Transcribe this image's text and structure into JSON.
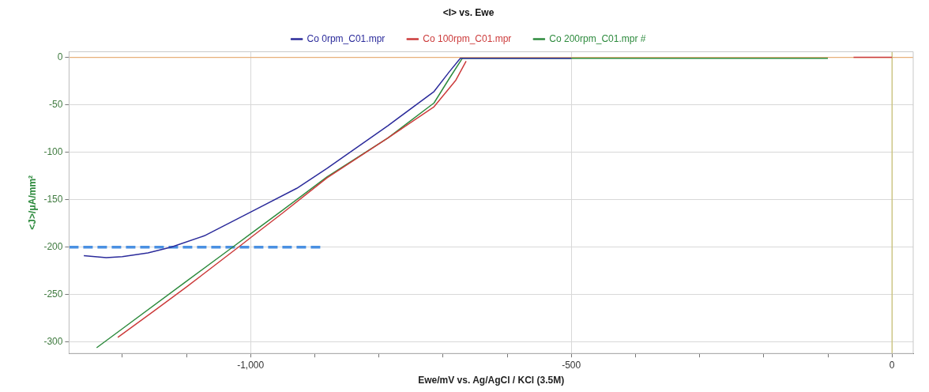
{
  "chart_data": {
    "type": "line",
    "title": "<I> vs. Ewe",
    "xlabel": "Ewe/mV vs. Ag/AgCl / KCl (3.5M)",
    "ylabel": "<J>/μA/mm²",
    "xlim": [
      -1283,
      33
    ],
    "ylim": [
      -312,
      6
    ],
    "xticks": [
      {
        "value": -1200,
        "label": null
      },
      {
        "value": -1100,
        "label": null
      },
      {
        "value": -1000,
        "label": "-1,000"
      },
      {
        "value": -900,
        "label": null
      },
      {
        "value": -800,
        "label": null
      },
      {
        "value": -700,
        "label": null
      },
      {
        "value": -600,
        "label": null
      },
      {
        "value": -500,
        "label": "-500"
      },
      {
        "value": -400,
        "label": null
      },
      {
        "value": -300,
        "label": null
      },
      {
        "value": -200,
        "label": null
      },
      {
        "value": -100,
        "label": null
      },
      {
        "value": 0,
        "label": "0"
      }
    ],
    "yticks": [
      -300,
      -250,
      -200,
      -150,
      -100,
      -50,
      0
    ],
    "grid": true,
    "legend": "top",
    "marker": "none",
    "ref_lines": [
      {
        "axis": "y",
        "value": 0,
        "color": "#e8b07a"
      },
      {
        "axis": "x",
        "value": 0,
        "color": "#c8c070"
      }
    ],
    "series": [
      {
        "name": "Co 0rpm_C01.mpr",
        "color": "#2b2b9b",
        "x": [
          -1260,
          -1225,
          -1200,
          -1160,
          -1124,
          -1072,
          -1000,
          -928,
          -881,
          -786,
          -714,
          -690,
          -673,
          -650,
          -500
        ],
        "values": [
          -209,
          -211,
          -210,
          -206,
          -200,
          -188,
          -163,
          -138,
          -117,
          -72,
          -36,
          -15,
          -1,
          -1,
          -1
        ]
      },
      {
        "name": "Co 100rpm_C01.mpr",
        "color": "#cc3b3b",
        "x": [
          -1207,
          -1150,
          -1100,
          -1019,
          -1000,
          -950,
          -881,
          -786,
          -714,
          -680,
          -664,
          -400,
          -60,
          0
        ],
        "values": [
          -295,
          -267,
          -242,
          -200,
          -190,
          -164,
          -127,
          -85,
          -52,
          -24,
          -4,
          null,
          0,
          0
        ]
      },
      {
        "name": "Co 200rpm_C01.mpr #",
        "color": "#2e8b3e",
        "x": [
          -1240,
          -1200,
          -1100,
          -1028,
          -1000,
          -950,
          -881,
          -786,
          -714,
          -690,
          -670,
          -450,
          -100
        ],
        "values": [
          -306,
          -286,
          -236,
          -200,
          -186,
          -161,
          -126,
          -85,
          -48,
          -22,
          -1,
          -1,
          -1
        ]
      },
      {
        "color": "#4a90e2",
        "line_style": "dashed",
        "x": [
          -1283,
          -887
        ],
        "values": [
          -200,
          -200
        ]
      }
    ]
  }
}
